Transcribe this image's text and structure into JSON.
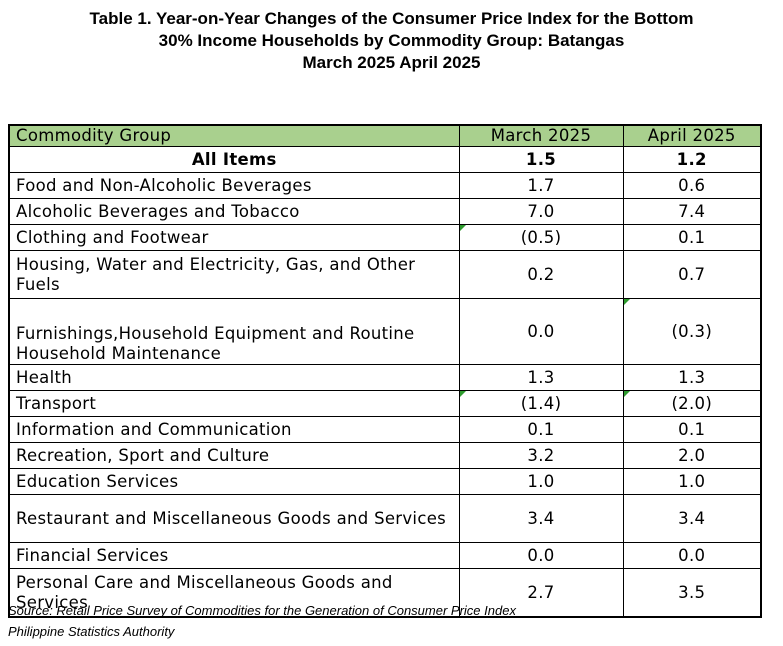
{
  "title": {
    "line1": "Table 1. Year-on-Year Changes of the Consumer Price Index for the Bottom",
    "line2": "30% Income Households by Commodity Group: Batangas",
    "line3": "March 2025 April 2025"
  },
  "table": {
    "headers": [
      "Commodity Group",
      "March 2025",
      "April 2025"
    ],
    "header_color": "#a9d08e",
    "rows": [
      {
        "label": "All Items",
        "mar": "1.5",
        "apr": "1.2"
      },
      {
        "label": "Food and Non-Alcoholic Beverages",
        "mar": "1.7",
        "apr": "0.6"
      },
      {
        "label": "Alcoholic Beverages and Tobacco",
        "mar": "7.0",
        "apr": "7.4"
      },
      {
        "label": "Clothing and Footwear",
        "mar": "(0.5)",
        "apr": "0.1"
      },
      {
        "label": "Housing, Water and Electricity, Gas, and Other Fuels",
        "mar": "0.2",
        "apr": "0.7"
      },
      {
        "label": "Furnishings,Household Equipment and Routine Household Maintenance",
        "mar": "0.0",
        "apr": "(0.3)"
      },
      {
        "label": "Health",
        "mar": "1.3",
        "apr": "1.3"
      },
      {
        "label": "Transport",
        "mar": "(1.4)",
        "apr": "(2.0)"
      },
      {
        "label": "Information and Communication",
        "mar": "0.1",
        "apr": "0.1"
      },
      {
        "label": "Recreation, Sport and Culture",
        "mar": "3.2",
        "apr": "2.0"
      },
      {
        "label": "Education Services",
        "mar": "1.0",
        "apr": "1.0"
      },
      {
        "label": "Restaurant and Miscellaneous Goods and Services",
        "mar": "3.4",
        "apr": "3.4"
      },
      {
        "label": "Financial Services",
        "mar": "0.0",
        "apr": "0.0"
      },
      {
        "label": "Personal Care and Miscellaneous Goods and Services",
        "mar": "2.7",
        "apr": "3.5"
      }
    ]
  },
  "source": {
    "line1": "Source: Retail Price Survey of Commodities for the Generation of Consumer Price Index",
    "line2": "Philippine Statistics Authority"
  }
}
